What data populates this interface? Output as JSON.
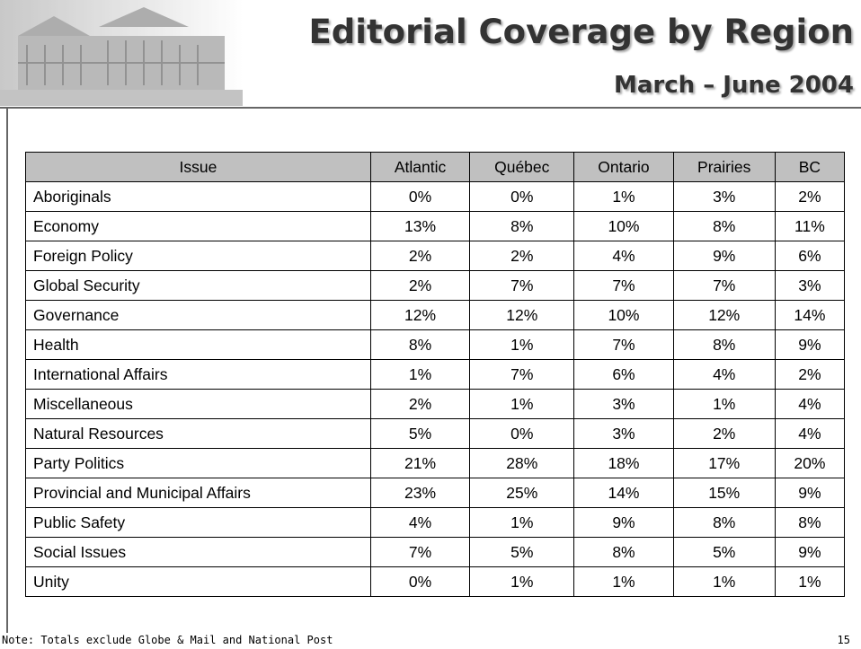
{
  "header": {
    "title": "Editorial Coverage by Region",
    "subtitle": "March – June 2004"
  },
  "table": {
    "columns": [
      "Issue",
      "Atlantic",
      "Québec",
      "Ontario",
      "Prairies",
      "BC"
    ],
    "rows": [
      [
        "Aboriginals",
        "0%",
        "0%",
        "1%",
        "3%",
        "2%"
      ],
      [
        "Economy",
        "13%",
        "8%",
        "10%",
        "8%",
        "11%"
      ],
      [
        "Foreign Policy",
        "2%",
        "2%",
        "4%",
        "9%",
        "6%"
      ],
      [
        "Global Security",
        "2%",
        "7%",
        "7%",
        "7%",
        "3%"
      ],
      [
        "Governance",
        "12%",
        "12%",
        "10%",
        "12%",
        "14%"
      ],
      [
        "Health",
        "8%",
        "1%",
        "7%",
        "8%",
        "9%"
      ],
      [
        "International Affairs",
        "1%",
        "7%",
        "6%",
        "4%",
        "2%"
      ],
      [
        "Miscellaneous",
        "2%",
        "1%",
        "3%",
        "1%",
        "4%"
      ],
      [
        "Natural Resources",
        "5%",
        "0%",
        "3%",
        "2%",
        "4%"
      ],
      [
        "Party Politics",
        "21%",
        "28%",
        "18%",
        "17%",
        "20%"
      ],
      [
        "Provincial and Municipal Affairs",
        "23%",
        "25%",
        "14%",
        "15%",
        "9%"
      ],
      [
        "Public Safety",
        "4%",
        "1%",
        "9%",
        "8%",
        "8%"
      ],
      [
        "Social Issues",
        "7%",
        "5%",
        "8%",
        "5%",
        "9%"
      ],
      [
        "Unity",
        "0%",
        "1%",
        "1%",
        "1%",
        "1%"
      ]
    ]
  },
  "footer": {
    "note": "Note: Totals exclude Globe & Mail and National Post",
    "page": "15"
  }
}
